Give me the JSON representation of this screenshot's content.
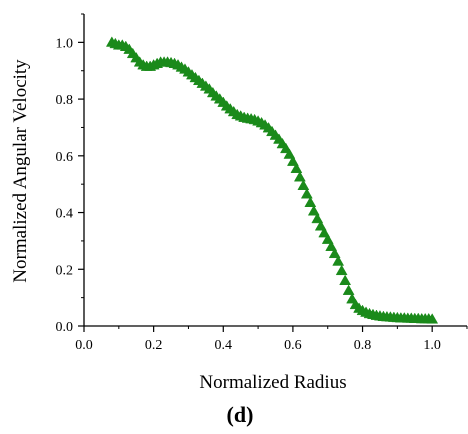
{
  "chart_data": {
    "type": "scatter",
    "panel_label": "(d)",
    "xlabel": "Normalized Radius",
    "ylabel": "Normalized Angular Velocity",
    "xlim": [
      0.0,
      1.1
    ],
    "ylim": [
      0.0,
      1.1
    ],
    "xticks": [
      "0.0",
      "0.2",
      "0.4",
      "0.6",
      "0.8",
      "1.0"
    ],
    "yticks": [
      "0.0",
      "0.2",
      "0.4",
      "0.6",
      "0.8",
      "1.0"
    ],
    "marker": "triangle",
    "color": "#1a8a1a",
    "grid": false,
    "legend": "none",
    "series": [
      {
        "x": [
          0.08,
          0.09,
          0.1,
          0.11,
          0.12,
          0.13,
          0.14,
          0.15,
          0.16,
          0.17,
          0.18,
          0.19,
          0.2,
          0.21,
          0.22,
          0.23,
          0.24,
          0.25,
          0.26,
          0.27,
          0.28,
          0.29,
          0.3,
          0.31,
          0.32,
          0.33,
          0.34,
          0.35,
          0.36,
          0.37,
          0.38,
          0.39,
          0.4,
          0.41,
          0.42,
          0.43,
          0.44,
          0.45,
          0.46,
          0.47,
          0.48,
          0.49,
          0.5,
          0.51,
          0.52,
          0.53,
          0.54,
          0.55,
          0.56,
          0.57,
          0.58,
          0.59,
          0.6,
          0.61,
          0.62,
          0.63,
          0.64,
          0.65,
          0.66,
          0.67,
          0.68,
          0.69,
          0.7,
          0.71,
          0.72,
          0.73,
          0.74,
          0.75,
          0.76,
          0.77,
          0.78,
          0.79,
          0.8,
          0.81,
          0.82,
          0.83,
          0.84,
          0.85,
          0.86,
          0.87,
          0.88,
          0.89,
          0.9,
          0.91,
          0.92,
          0.93,
          0.94,
          0.95,
          0.96,
          0.97,
          0.98,
          0.99,
          1.0
        ],
        "y": [
          1.0,
          0.995,
          0.99,
          0.99,
          0.985,
          0.975,
          0.96,
          0.945,
          0.93,
          0.92,
          0.915,
          0.915,
          0.92,
          0.925,
          0.93,
          0.93,
          0.93,
          0.928,
          0.925,
          0.92,
          0.912,
          0.905,
          0.895,
          0.885,
          0.875,
          0.865,
          0.855,
          0.845,
          0.835,
          0.822,
          0.81,
          0.8,
          0.788,
          0.775,
          0.765,
          0.755,
          0.745,
          0.74,
          0.735,
          0.732,
          0.73,
          0.727,
          0.722,
          0.716,
          0.708,
          0.698,
          0.685,
          0.672,
          0.658,
          0.642,
          0.625,
          0.605,
          0.58,
          0.555,
          0.525,
          0.495,
          0.465,
          0.435,
          0.405,
          0.378,
          0.352,
          0.328,
          0.305,
          0.28,
          0.255,
          0.228,
          0.195,
          0.16,
          0.125,
          0.095,
          0.075,
          0.062,
          0.054,
          0.048,
          0.043,
          0.04,
          0.037,
          0.035,
          0.033,
          0.032,
          0.031,
          0.03,
          0.029,
          0.028,
          0.028,
          0.027,
          0.027,
          0.026,
          0.026,
          0.025,
          0.025,
          0.025,
          0.024
        ]
      }
    ]
  }
}
